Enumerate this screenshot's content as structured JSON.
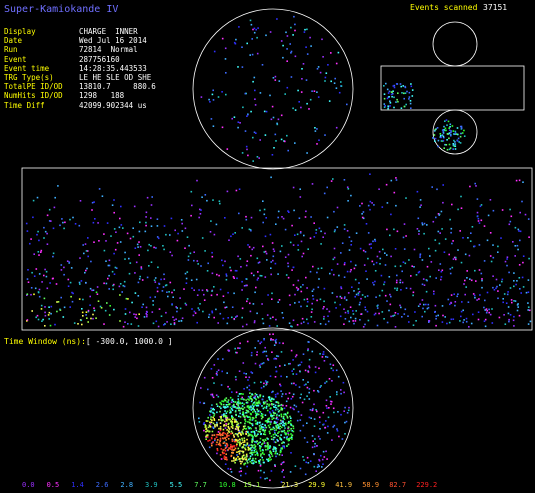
{
  "app": {
    "title": "Super-Kamiokande IV",
    "events_scanned_label": "Events scanned",
    "events_scanned_value": "37151"
  },
  "event_info": [
    {
      "label": "Display",
      "value": "CHARGE  INNER"
    },
    {
      "label": "Date",
      "value": "Wed Jul 16 2014"
    },
    {
      "label": "Run",
      "value": "72814  Normal"
    },
    {
      "label": "Event",
      "value": "287756160"
    },
    {
      "label": "Event time",
      "value": "14:28:35.443533"
    },
    {
      "label": "TRG Type(s)",
      "value": "LE HE SLE OD SHE"
    },
    {
      "label": "TotalPE ID/OD",
      "value": "13810.7     880.6"
    },
    {
      "label": "NumHits ID/OD",
      "value": "1298   188"
    },
    {
      "label": "Time Diff",
      "value": "42099.902344 us"
    }
  ],
  "time_window": {
    "label": "Time Window (ns)",
    "value": "[ -300.0, 1000.0 ]"
  },
  "color_scale": [
    {
      "value": "0.0",
      "color": "#9b30ff"
    },
    {
      "value": "0.5",
      "color": "#ff30ff"
    },
    {
      "value": "1.4",
      "color": "#3030ff"
    },
    {
      "value": "2.6",
      "color": "#3c6cff"
    },
    {
      "value": "2.8",
      "color": "#40b0ff"
    },
    {
      "value": "3.9",
      "color": "#20c0c0"
    },
    {
      "value": "5.5",
      "color": "#40ffff"
    },
    {
      "value": "7.7",
      "color": "#60ff60"
    },
    {
      "value": "10.8",
      "color": "#30ff30"
    },
    {
      "value": "15.1",
      "color": "#a0ff40"
    },
    {
      "value": "21.3",
      "color": "#ffff60"
    },
    {
      "value": "29.9",
      "color": "#ffff30"
    },
    {
      "value": "41.9",
      "color": "#ffc040"
    },
    {
      "value": "58.9",
      "color": "#ff9030"
    },
    {
      "value": "82.7",
      "color": "#ff5030"
    },
    {
      "value": "229.2",
      "color": "#ff2020"
    }
  ]
}
